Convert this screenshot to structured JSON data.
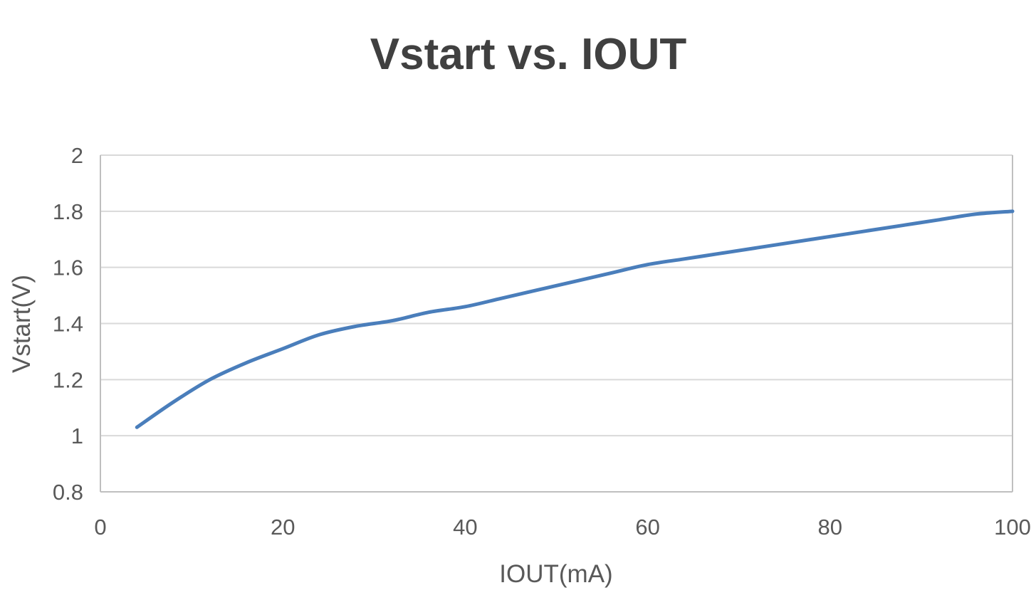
{
  "chart_data": {
    "type": "line",
    "title": "Vstart vs. IOUT",
    "xlabel": "IOUT(mA)",
    "ylabel": "Vstart(V)",
    "xlim": [
      0,
      100
    ],
    "ylim": [
      0.8,
      2
    ],
    "x_ticks": [
      0,
      20,
      40,
      60,
      80,
      100
    ],
    "x_tick_labels": [
      "0",
      "20",
      "40",
      "60",
      "80",
      "100"
    ],
    "y_ticks": [
      0.8,
      1,
      1.2,
      1.4,
      1.6,
      1.8,
      2
    ],
    "y_tick_labels": [
      "0.8",
      "1",
      "1.2",
      "1.4",
      "1.6",
      "1.8",
      "2"
    ],
    "grid": true,
    "legend": "none",
    "series": [
      {
        "color": "#4a7ebb",
        "x": [
          4,
          8,
          12,
          16,
          20,
          24,
          28,
          32,
          36,
          40,
          44,
          48,
          52,
          56,
          60,
          64,
          68,
          72,
          76,
          80,
          84,
          88,
          92,
          96,
          100
        ],
        "y": [
          1.03,
          1.12,
          1.2,
          1.26,
          1.31,
          1.36,
          1.39,
          1.41,
          1.44,
          1.46,
          1.49,
          1.52,
          1.55,
          1.58,
          1.61,
          1.63,
          1.65,
          1.67,
          1.69,
          1.71,
          1.73,
          1.75,
          1.77,
          1.79,
          1.8
        ]
      }
    ]
  }
}
